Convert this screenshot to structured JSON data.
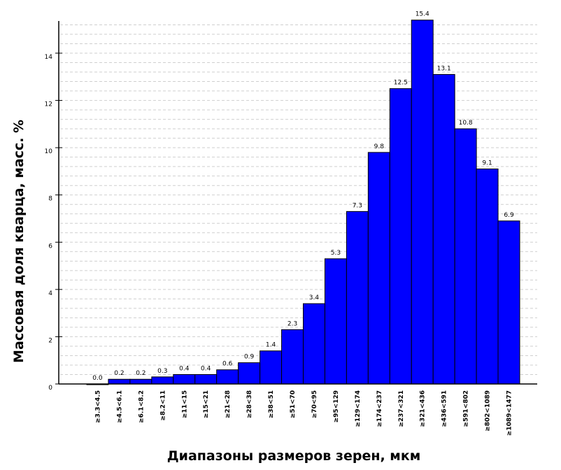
{
  "chart_data": {
    "type": "bar",
    "title": "",
    "xlabel": "Диапазоны размеров зерен, мкм",
    "ylabel": "Массовая доля кварца, масс. %",
    "ylim": [
      0,
      15.4
    ],
    "yticks": [
      0,
      2,
      4,
      6,
      8,
      10,
      12,
      14
    ],
    "grid": true,
    "legend": "none",
    "bar_color": "#0000FF",
    "categories": [
      "≥3.3<4.5",
      "≥4.5<6.1",
      "≥6.1<8.2",
      "≥8.2<11",
      "≥11<15",
      "≥15<21",
      "≥21<28",
      "≥28<38",
      "≥38<51",
      "≥51<70",
      "≥70<95",
      "≥95<129",
      "≥129<174",
      "≥174<237",
      "≥237<321",
      "≥321<436",
      "≥436<591",
      "≥591<802",
      "≥802<1089",
      "≥1089<1477"
    ],
    "values": [
      0.0,
      0.2,
      0.2,
      0.3,
      0.4,
      0.4,
      0.6,
      0.9,
      1.4,
      2.3,
      3.4,
      5.3,
      7.3,
      9.8,
      12.5,
      15.4,
      13.1,
      10.8,
      9.1,
      6.9
    ],
    "data_labels": [
      "0.0",
      "0.2",
      "0.2",
      "0.3",
      "0.4",
      "0.4",
      "0.6",
      "0.9",
      "1.4",
      "2.3",
      "3.4",
      "5.3",
      "7.3",
      "9.8",
      "12.5",
      "15.4",
      "13.1",
      "10.8",
      "9.1",
      "6.9"
    ]
  }
}
